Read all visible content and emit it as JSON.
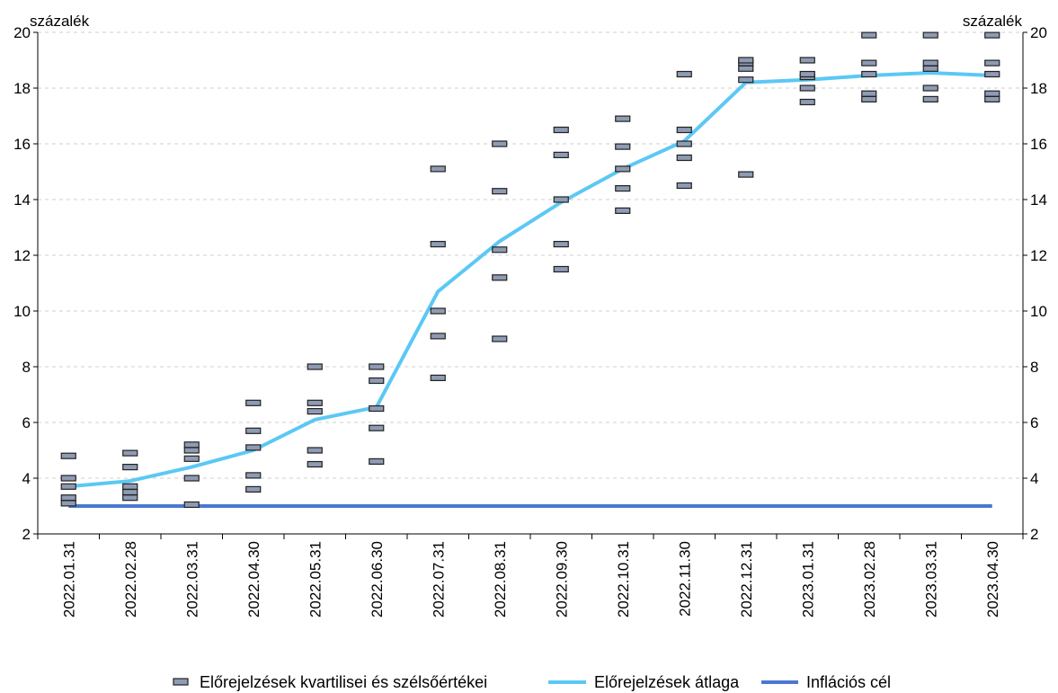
{
  "chart_data": {
    "type": "line",
    "y_unit_left": "százalék",
    "y_unit_right": "százalék",
    "ylim": [
      2,
      20
    ],
    "yticks": [
      2,
      4,
      6,
      8,
      10,
      12,
      14,
      16,
      18,
      20
    ],
    "grid": "horizontal dashed",
    "legend_position": "bottom",
    "categories": [
      "2022.01.31",
      "2022.02.28",
      "2022.03.31",
      "2022.04.30",
      "2022.05.31",
      "2022.06.30",
      "2022.07.31",
      "2022.08.31",
      "2022.09.30",
      "2022.10.31",
      "2022.11.30",
      "2022.12.31",
      "2023.01.31",
      "2023.02.28",
      "2023.03.31",
      "2023.04.30"
    ],
    "series": [
      {
        "name": "Előrejelzések kvartilisei és szélsőértékei",
        "kind": "markers",
        "color": "#8e9bb3",
        "values": [
          [
            3.1,
            3.3,
            3.7,
            4.0,
            4.8
          ],
          [
            3.3,
            3.5,
            3.7,
            4.4,
            4.9
          ],
          [
            3.05,
            4.0,
            4.7,
            5.0,
            5.2
          ],
          [
            3.6,
            4.1,
            5.1,
            5.7,
            6.7
          ],
          [
            4.5,
            5.0,
            6.4,
            6.7,
            8.0
          ],
          [
            4.6,
            5.8,
            6.5,
            7.5,
            8.0
          ],
          [
            7.6,
            9.1,
            10.0,
            12.4,
            15.1
          ],
          [
            9.0,
            11.2,
            12.2,
            14.3,
            16.0
          ],
          [
            11.5,
            12.4,
            14.0,
            15.6,
            16.5
          ],
          [
            13.6,
            14.4,
            15.1,
            15.9,
            16.9
          ],
          [
            14.5,
            15.5,
            16.0,
            16.5,
            18.5
          ],
          [
            14.9,
            18.3,
            18.7,
            18.9,
            19.0
          ],
          [
            17.5,
            18.0,
            18.4,
            18.5,
            19.0
          ],
          [
            17.6,
            17.8,
            18.5,
            18.9,
            19.9
          ],
          [
            17.6,
            18.0,
            18.7,
            18.9,
            19.9
          ],
          [
            17.6,
            17.8,
            18.5,
            18.9,
            19.9
          ]
        ]
      },
      {
        "name": "Előrejelzések átlaga",
        "kind": "line",
        "color": "#5bc8f5",
        "values": [
          3.7,
          3.9,
          4.4,
          5.0,
          6.1,
          6.55,
          10.7,
          12.5,
          13.9,
          15.1,
          16.1,
          18.2,
          18.3,
          18.45,
          18.55,
          18.45
        ]
      },
      {
        "name": "Inflációs cél",
        "kind": "line",
        "color": "#4a78d0",
        "values": [
          3,
          3,
          3,
          3,
          3,
          3,
          3,
          3,
          3,
          3,
          3,
          3,
          3,
          3,
          3,
          3
        ]
      }
    ]
  }
}
